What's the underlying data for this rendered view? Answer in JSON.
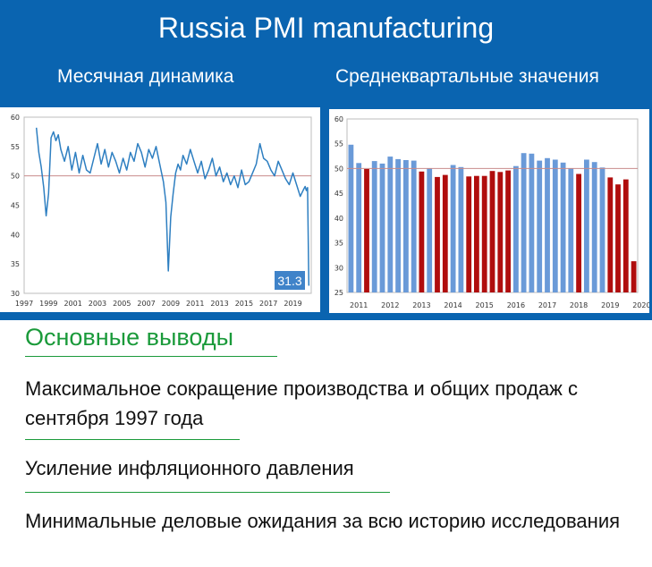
{
  "title": "Russia PMI manufacturing",
  "left_subtitle": "Месячная динамика",
  "right_subtitle": "Среднеквартальные значения",
  "conclusions": {
    "heading": "Основные выводы",
    "items": [
      "Максимальное сокращение производства и общих продаж с сентября 1997 года",
      "Усиление инфляционного давления",
      "Минимальные деловые ожидания за всю историю исследования"
    ]
  },
  "chart_data": [
    {
      "type": "line",
      "title": "",
      "x_ticks": [
        "1997",
        "1999",
        "2001",
        "2003",
        "2005",
        "2007",
        "2009",
        "2011",
        "2013",
        "2015",
        "2017",
        "2019"
      ],
      "ylim": [
        30,
        60
      ],
      "y_ticks": [
        30,
        35,
        40,
        45,
        50,
        55,
        60
      ],
      "reference_line": 50,
      "last_value_label": "31.3",
      "colors": {
        "line": "#2e7fc1",
        "reference": "#c98b8b",
        "label_bg": "#3f83c9"
      },
      "x_range": [
        1997.0,
        2020.5
      ],
      "series": [
        {
          "x": [
            1998.0,
            1998.2,
            1998.4,
            1998.6,
            1998.8,
            1999.0,
            1999.2,
            1999.4,
            1999.6,
            1999.8,
            2000.0,
            2000.3,
            2000.6,
            2000.9,
            2001.2,
            2001.5,
            2001.8,
            2002.1,
            2002.4,
            2002.7,
            2003.0,
            2003.3,
            2003.6,
            2003.9,
            2004.2,
            2004.5,
            2004.8,
            2005.1,
            2005.4,
            2005.7,
            2006.0,
            2006.3,
            2006.6,
            2006.9,
            2007.2,
            2007.5,
            2007.8,
            2008.1,
            2008.4,
            2008.6,
            2008.8,
            2009.0,
            2009.2,
            2009.4,
            2009.6,
            2009.8,
            2010.0,
            2010.3,
            2010.6,
            2010.9,
            2011.2,
            2011.5,
            2011.8,
            2012.1,
            2012.4,
            2012.7,
            2013.0,
            2013.3,
            2013.6,
            2013.9,
            2014.2,
            2014.5,
            2014.8,
            2015.1,
            2015.4,
            2015.7,
            2016.0,
            2016.3,
            2016.6,
            2016.9,
            2017.2,
            2017.5,
            2017.8,
            2018.1,
            2018.4,
            2018.7,
            2019.0,
            2019.3,
            2019.6,
            2019.9,
            2020.0,
            2020.1,
            2020.2,
            2020.3
          ],
          "y": [
            58.2,
            54.0,
            51.5,
            48.0,
            43.2,
            47.0,
            56.5,
            57.5,
            56.0,
            57.0,
            54.5,
            52.5,
            55.0,
            51.0,
            54.0,
            50.5,
            53.5,
            51.0,
            50.5,
            53.0,
            55.5,
            52.0,
            54.5,
            51.5,
            54.0,
            52.5,
            50.5,
            53.0,
            51.0,
            54.0,
            52.5,
            55.5,
            54.0,
            51.5,
            54.5,
            53.0,
            55.0,
            52.0,
            49.0,
            45.5,
            33.8,
            43.0,
            47.0,
            50.5,
            52.0,
            51.0,
            53.5,
            52.0,
            54.5,
            52.5,
            50.5,
            52.5,
            49.5,
            51.0,
            53.0,
            50.0,
            51.5,
            49.0,
            50.5,
            48.5,
            50.0,
            48.0,
            51.0,
            48.5,
            49.0,
            50.5,
            52.0,
            55.5,
            53.0,
            52.5,
            51.0,
            50.0,
            52.5,
            51.0,
            49.5,
            48.5,
            50.5,
            48.5,
            46.5,
            47.8,
            48.2,
            47.5,
            48.0,
            31.3
          ]
        }
      ]
    },
    {
      "type": "bar",
      "title": "",
      "x_ticks": [
        "2011",
        "2012",
        "2013",
        "2014",
        "2015",
        "2016",
        "2017",
        "2018",
        "2019",
        "2020"
      ],
      "ylim": [
        25,
        60
      ],
      "y_ticks": [
        25,
        30,
        35,
        40,
        45,
        50,
        55,
        60
      ],
      "reference_line": 50,
      "colors": {
        "above": "#6a9ad8",
        "below": "#b00d0d",
        "reference": "#c98b8b"
      },
      "values": [
        54.8,
        51.1,
        49.9,
        51.5,
        51.0,
        52.4,
        51.9,
        51.7,
        51.6,
        49.4,
        50.0,
        48.3,
        48.7,
        50.7,
        50.3,
        48.4,
        48.5,
        48.5,
        49.5,
        49.3,
        49.6,
        50.5,
        53.1,
        53.0,
        51.6,
        52.1,
        51.8,
        51.2,
        50.0,
        48.9,
        51.8,
        51.3,
        50.2,
        48.2,
        46.8,
        47.8,
        31.3
      ]
    }
  ]
}
